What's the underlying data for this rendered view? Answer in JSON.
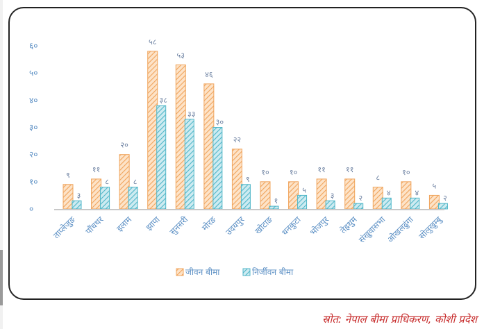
{
  "chart_data": {
    "type": "bar",
    "categories": [
      "ताप्लेजुङ",
      "पाँचथर",
      "इलाम",
      "झापा",
      "सुनसरी",
      "मोरङ",
      "उदयपुर",
      "खोटाङ",
      "धनकुटा",
      "भोजपुर",
      "तेह्रथुम",
      "संखुवासभा",
      "ओखलढुंगा",
      "सोलुखुम्बु"
    ],
    "series": [
      {
        "name": "जीवन बीमा",
        "values": [
          9,
          11,
          20,
          58,
          53,
          46,
          22,
          10,
          10,
          11,
          11,
          8,
          10,
          5
        ],
        "labels": [
          "९",
          "११",
          "२०",
          "५८",
          "५३",
          "४६",
          "२२",
          "१०",
          "१०",
          "११",
          "११",
          "८",
          "१०",
          "५"
        ],
        "color": "#f0a45c"
      },
      {
        "name": "निर्जीवन बीमा",
        "values": [
          3,
          8,
          8,
          38,
          33,
          30,
          9,
          1,
          5,
          3,
          2,
          4,
          4,
          2
        ],
        "labels": [
          "३",
          "८",
          "८",
          "३८",
          "३३",
          "३०",
          "९",
          "१",
          "५",
          "३",
          "२",
          "४",
          "४",
          "२"
        ],
        "color": "#4fb6c8"
      }
    ],
    "y_ticks": [
      "०",
      "१०",
      "२०",
      "३०",
      "४०",
      "५०",
      "६०"
    ],
    "ylim": [
      0,
      60
    ],
    "grid": false,
    "legend_position": "bottom"
  },
  "source_text": "स्रोत: नेपाल बीमा प्राधिकरण, कोशी प्रदेश"
}
